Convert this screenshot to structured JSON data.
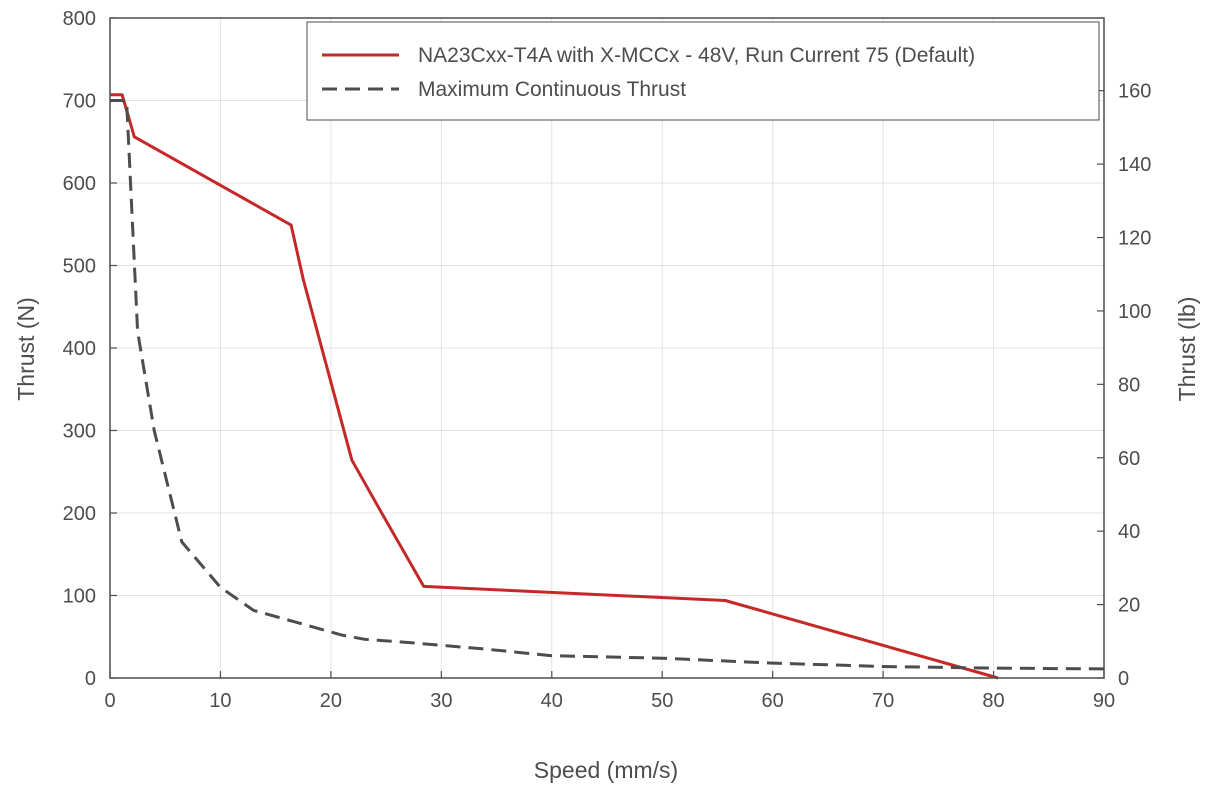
{
  "chart_data": {
    "type": "line",
    "xlabel": "Speed (mm/s)",
    "ylabel": "Thrust (N)",
    "y2label": "Thrust (lb)",
    "xlim": [
      0,
      90
    ],
    "ylim": [
      0,
      800
    ],
    "y2lim": [
      0,
      179.8
    ],
    "xticks": [
      0,
      10,
      20,
      30,
      40,
      50,
      60,
      70,
      80,
      90
    ],
    "yticks": [
      0,
      100,
      200,
      300,
      400,
      500,
      600,
      700,
      800
    ],
    "y2ticks": [
      0,
      20,
      40,
      60,
      80,
      100,
      120,
      140,
      160
    ],
    "grid": true,
    "legend_position": "top-right",
    "series": [
      {
        "name": "NA23Cxx-T4A with X-MCCx - 48V, Run Current 75 (Default)",
        "color": "#c62828",
        "style": "solid",
        "x": [
          0,
          1.1,
          2.2,
          16.4,
          17.5,
          21.9,
          24.6,
          28.4,
          55.7,
          80.4
        ],
        "y": [
          707,
          707,
          656,
          549,
          483,
          264,
          200,
          111,
          94,
          0
        ]
      },
      {
        "name": "Maximum Continuous Thrust",
        "color": "#4d4d4d",
        "style": "dashed",
        "x": [
          0,
          1.5,
          2.5,
          4,
          6.5,
          10,
          13,
          17,
          21,
          23,
          28,
          34,
          40,
          50,
          60,
          70,
          80,
          90
        ],
        "y": [
          700,
          700,
          420,
          300,
          165,
          110,
          82,
          67,
          52,
          47,
          42,
          35,
          27,
          24,
          18,
          14,
          12,
          11
        ]
      }
    ]
  }
}
